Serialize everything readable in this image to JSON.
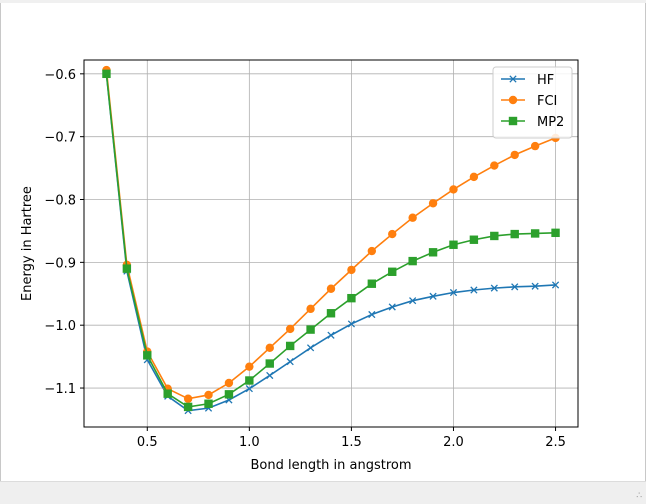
{
  "chart_data": {
    "type": "line",
    "title": "",
    "xlabel": "Bond length in angstrom",
    "ylabel": "Energy in Hartree",
    "xlim": [
      0.19,
      2.61
    ],
    "ylim": [
      -1.162,
      -0.578
    ],
    "xticks": [
      0.5,
      1.0,
      1.5,
      2.0,
      2.5
    ],
    "xtick_labels": [
      "0.5",
      "1.0",
      "1.5",
      "2.0",
      "2.5"
    ],
    "yticks": [
      -1.1,
      -1.0,
      -0.9,
      -0.8,
      -0.7,
      -0.6
    ],
    "ytick_labels": [
      "−1.1",
      "−1.0",
      "−0.9",
      "−0.8",
      "−0.7",
      "−0.6"
    ],
    "grid": true,
    "legend_position": "top-right",
    "x": [
      0.3,
      0.4,
      0.5,
      0.6,
      0.7,
      0.8,
      0.9,
      1.0,
      1.1,
      1.2,
      1.3,
      1.4,
      1.5,
      1.6,
      1.7,
      1.8,
      1.9,
      2.0,
      2.1,
      2.2,
      2.3,
      2.4,
      2.5
    ],
    "series": [
      {
        "name": "HF",
        "color": "#1f77b4",
        "marker": "x",
        "values": [
          -0.601,
          -0.914,
          -1.055,
          -1.113,
          -1.136,
          -1.132,
          -1.119,
          -1.101,
          -1.08,
          -1.058,
          -1.036,
          -1.016,
          -0.998,
          -0.983,
          -0.971,
          -0.961,
          -0.954,
          -0.948,
          -0.944,
          -0.941,
          -0.939,
          -0.938,
          -0.936
        ]
      },
      {
        "name": "FCI",
        "color": "#ff7f0e",
        "marker": "circle",
        "values": [
          -0.594,
          -0.904,
          -1.042,
          -1.101,
          -1.117,
          -1.111,
          -1.092,
          -1.066,
          -1.036,
          -1.006,
          -0.974,
          -0.942,
          -0.912,
          -0.882,
          -0.855,
          -0.829,
          -0.806,
          -0.784,
          -0.764,
          -0.746,
          -0.729,
          -0.715,
          -0.702
        ]
      },
      {
        "name": "MP2",
        "color": "#2ca02c",
        "marker": "square",
        "values": [
          -0.6,
          -0.91,
          -1.048,
          -1.109,
          -1.13,
          -1.125,
          -1.11,
          -1.088,
          -1.061,
          -1.033,
          -1.007,
          -0.981,
          -0.957,
          -0.934,
          -0.915,
          -0.898,
          -0.884,
          -0.872,
          -0.864,
          -0.858,
          -0.855,
          -0.854,
          -0.853
        ]
      }
    ]
  }
}
